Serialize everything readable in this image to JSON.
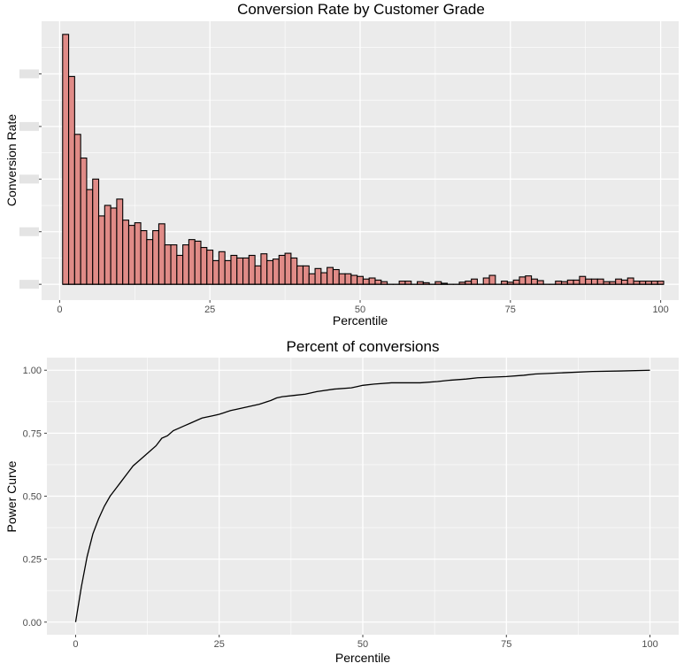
{
  "chart_data": [
    {
      "type": "bar",
      "title": "Conversion Rate by Customer Grade",
      "xlabel": "Percentile",
      "ylabel": "Conversion Rate",
      "x_ticks": [
        0,
        25,
        50,
        75,
        100
      ],
      "x_tick_labels": [
        "0",
        "25",
        "50",
        "75",
        "100"
      ],
      "y_tick_labels_obscured": true,
      "xlim": [
        -3,
        103
      ],
      "ylim": [
        -0.3,
        5
      ],
      "grid": true,
      "colors": {
        "bar_fill": "#e08b87",
        "bar_edge": "#000000",
        "panel": "#ebebeb",
        "grid": "#ffffff"
      },
      "x": [
        1,
        2,
        3,
        4,
        5,
        6,
        7,
        8,
        9,
        10,
        11,
        12,
        13,
        14,
        15,
        16,
        17,
        18,
        19,
        20,
        21,
        22,
        23,
        24,
        25,
        26,
        27,
        28,
        29,
        30,
        31,
        32,
        33,
        34,
        35,
        36,
        37,
        38,
        39,
        40,
        41,
        42,
        43,
        44,
        45,
        46,
        47,
        48,
        49,
        50,
        51,
        52,
        53,
        54,
        55,
        56,
        57,
        58,
        59,
        60,
        61,
        62,
        63,
        64,
        65,
        66,
        67,
        68,
        69,
        70,
        71,
        72,
        73,
        74,
        75,
        76,
        77,
        78,
        79,
        80,
        81,
        82,
        83,
        84,
        85,
        86,
        87,
        88,
        89,
        90,
        91,
        92,
        93,
        94,
        95,
        96,
        97,
        98,
        99,
        100
      ],
      "values": [
        4.75,
        3.95,
        2.85,
        2.4,
        1.8,
        2.0,
        1.3,
        1.5,
        1.45,
        1.62,
        1.22,
        1.12,
        1.17,
        1.02,
        0.85,
        1.02,
        1.15,
        0.75,
        0.75,
        0.55,
        0.75,
        0.85,
        0.82,
        0.7,
        0.65,
        0.45,
        0.62,
        0.45,
        0.55,
        0.5,
        0.5,
        0.55,
        0.35,
        0.58,
        0.45,
        0.48,
        0.55,
        0.59,
        0.5,
        0.35,
        0.35,
        0.2,
        0.3,
        0.22,
        0.32,
        0.28,
        0.2,
        0.2,
        0.17,
        0.15,
        0.1,
        0.12,
        0.08,
        0.05,
        0.0,
        0.0,
        0.06,
        0.06,
        0.0,
        0.05,
        0.03,
        0.0,
        0.05,
        0.02,
        0.0,
        0.0,
        0.04,
        0.06,
        0.1,
        0.0,
        0.12,
        0.17,
        0.0,
        0.06,
        0.04,
        0.08,
        0.14,
        0.16,
        0.1,
        0.07,
        0.0,
        0.0,
        0.06,
        0.05,
        0.08,
        0.08,
        0.15,
        0.1,
        0.1,
        0.1,
        0.05,
        0.05,
        0.1,
        0.08,
        0.12,
        0.06,
        0.06,
        0.06,
        0.06,
        0.06
      ]
    },
    {
      "type": "line",
      "title": "Percent of conversions",
      "xlabel": "Percentile",
      "ylabel": "Power Curve",
      "x_ticks": [
        0,
        25,
        50,
        75,
        100
      ],
      "x_tick_labels": [
        "0",
        "25",
        "50",
        "75",
        "100"
      ],
      "y_ticks": [
        0,
        0.25,
        0.5,
        0.75,
        1
      ],
      "y_tick_labels": [
        "0.00",
        "0.25",
        "0.50",
        "0.75",
        "1.00"
      ],
      "xlim": [
        -5,
        105
      ],
      "ylim": [
        -0.05,
        1.05
      ],
      "grid": true,
      "colors": {
        "line": "#000000",
        "panel": "#ebebeb",
        "grid": "#ffffff"
      },
      "x": [
        0,
        1,
        2,
        3,
        4,
        5,
        6,
        7,
        8,
        9,
        10,
        12,
        14,
        15,
        16,
        17,
        18,
        19,
        20,
        22,
        24,
        25,
        27,
        28,
        30,
        32,
        34,
        35,
        36,
        38,
        40,
        42,
        45,
        48,
        49,
        50,
        52,
        55,
        60,
        63,
        65,
        68,
        70,
        75,
        78,
        80,
        85,
        90,
        95,
        100
      ],
      "values": [
        0.0,
        0.14,
        0.26,
        0.35,
        0.41,
        0.46,
        0.5,
        0.53,
        0.56,
        0.59,
        0.62,
        0.66,
        0.7,
        0.73,
        0.74,
        0.76,
        0.77,
        0.78,
        0.79,
        0.81,
        0.82,
        0.825,
        0.84,
        0.845,
        0.855,
        0.865,
        0.88,
        0.89,
        0.895,
        0.9,
        0.905,
        0.915,
        0.925,
        0.93,
        0.935,
        0.94,
        0.945,
        0.95,
        0.95,
        0.955,
        0.96,
        0.965,
        0.97,
        0.975,
        0.98,
        0.985,
        0.99,
        0.995,
        0.997,
        1.0
      ]
    }
  ]
}
